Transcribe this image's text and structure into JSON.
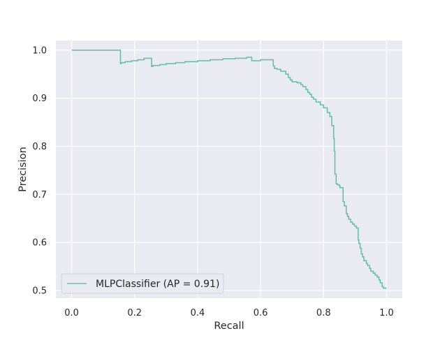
{
  "chart_data": {
    "type": "line",
    "title": "",
    "xlabel": "Recall",
    "ylabel": "Precision",
    "xlim": [
      -0.05,
      1.05
    ],
    "ylim": [
      0.484,
      1.02
    ],
    "xticks": [
      0.0,
      0.2,
      0.4,
      0.6,
      0.8,
      1.0
    ],
    "xtick_labels": [
      "0.0",
      "0.2",
      "0.4",
      "0.6",
      "0.8",
      "1.0"
    ],
    "yticks": [
      0.5,
      0.6,
      0.7,
      0.8,
      0.9,
      1.0
    ],
    "ytick_labels": [
      "0.5",
      "0.6",
      "0.7",
      "0.8",
      "0.9",
      "1.0"
    ],
    "grid": true,
    "legend_position": "lower-left",
    "step": "post",
    "series": [
      {
        "name": "MLPClassifier (AP = 0.91)",
        "color": "#66c2a5",
        "x": [
          0.0,
          0.155,
          0.158,
          0.17,
          0.19,
          0.21,
          0.23,
          0.254,
          0.258,
          0.28,
          0.3,
          0.33,
          0.36,
          0.4,
          0.44,
          0.48,
          0.52,
          0.556,
          0.572,
          0.6,
          0.64,
          0.644,
          0.652,
          0.664,
          0.68,
          0.688,
          0.694,
          0.7,
          0.716,
          0.728,
          0.734,
          0.744,
          0.75,
          0.756,
          0.762,
          0.768,
          0.776,
          0.79,
          0.8,
          0.812,
          0.82,
          0.826,
          0.832,
          0.834,
          0.836,
          0.84,
          0.844,
          0.85,
          0.852,
          0.862,
          0.866,
          0.872,
          0.876,
          0.88,
          0.886,
          0.892,
          0.898,
          0.904,
          0.91,
          0.912,
          0.916,
          0.92,
          0.924,
          0.928,
          0.936,
          0.94,
          0.946,
          0.95,
          0.958,
          0.964,
          0.97,
          0.976,
          0.98,
          0.986,
          0.99,
          0.996,
          1.0
        ],
        "y": [
          1.0,
          0.972,
          0.974,
          0.976,
          0.978,
          0.98,
          0.983,
          0.966,
          0.968,
          0.97,
          0.972,
          0.974,
          0.976,
          0.978,
          0.98,
          0.982,
          0.983,
          0.985,
          0.978,
          0.98,
          0.967,
          0.962,
          0.96,
          0.956,
          0.95,
          0.943,
          0.938,
          0.934,
          0.932,
          0.928,
          0.924,
          0.918,
          0.912,
          0.908,
          0.902,
          0.898,
          0.892,
          0.886,
          0.88,
          0.87,
          0.862,
          0.843,
          0.816,
          0.79,
          0.742,
          0.722,
          0.72,
          0.718,
          0.714,
          0.685,
          0.676,
          0.66,
          0.654,
          0.648,
          0.642,
          0.638,
          0.634,
          0.63,
          0.605,
          0.598,
          0.588,
          0.576,
          0.57,
          0.562,
          0.556,
          0.552,
          0.546,
          0.54,
          0.536,
          0.532,
          0.528,
          0.522,
          0.516,
          0.508,
          0.505,
          0.505,
          0.505
        ]
      }
    ]
  }
}
